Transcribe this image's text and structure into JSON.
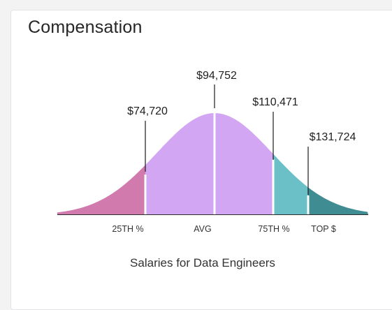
{
  "card": {
    "title": "Compensation",
    "caption": "Salaries for Data Engineers"
  },
  "chart_data": {
    "type": "area",
    "title": "",
    "segments": [
      {
        "name": "25th-percentile",
        "color": "#d17aae"
      },
      {
        "name": "avg",
        "color": "#d2a6f3"
      },
      {
        "name": "75th-percentile",
        "color": "#6bc0c8"
      },
      {
        "name": "top",
        "color": "#3f8d92"
      }
    ],
    "markers": [
      {
        "key": "p25",
        "category": "25TH %",
        "value_label": "$74,720",
        "value": 74720
      },
      {
        "key": "avg",
        "category": "AVG",
        "value_label": "$94,752",
        "value": 94752
      },
      {
        "key": "p75",
        "category": "75TH %",
        "value_label": "$110,471",
        "value": 110471
      },
      {
        "key": "top",
        "category": "TOP $",
        "value_label": "$131,724",
        "value": 131724
      }
    ],
    "grid": false,
    "legend": "none"
  }
}
